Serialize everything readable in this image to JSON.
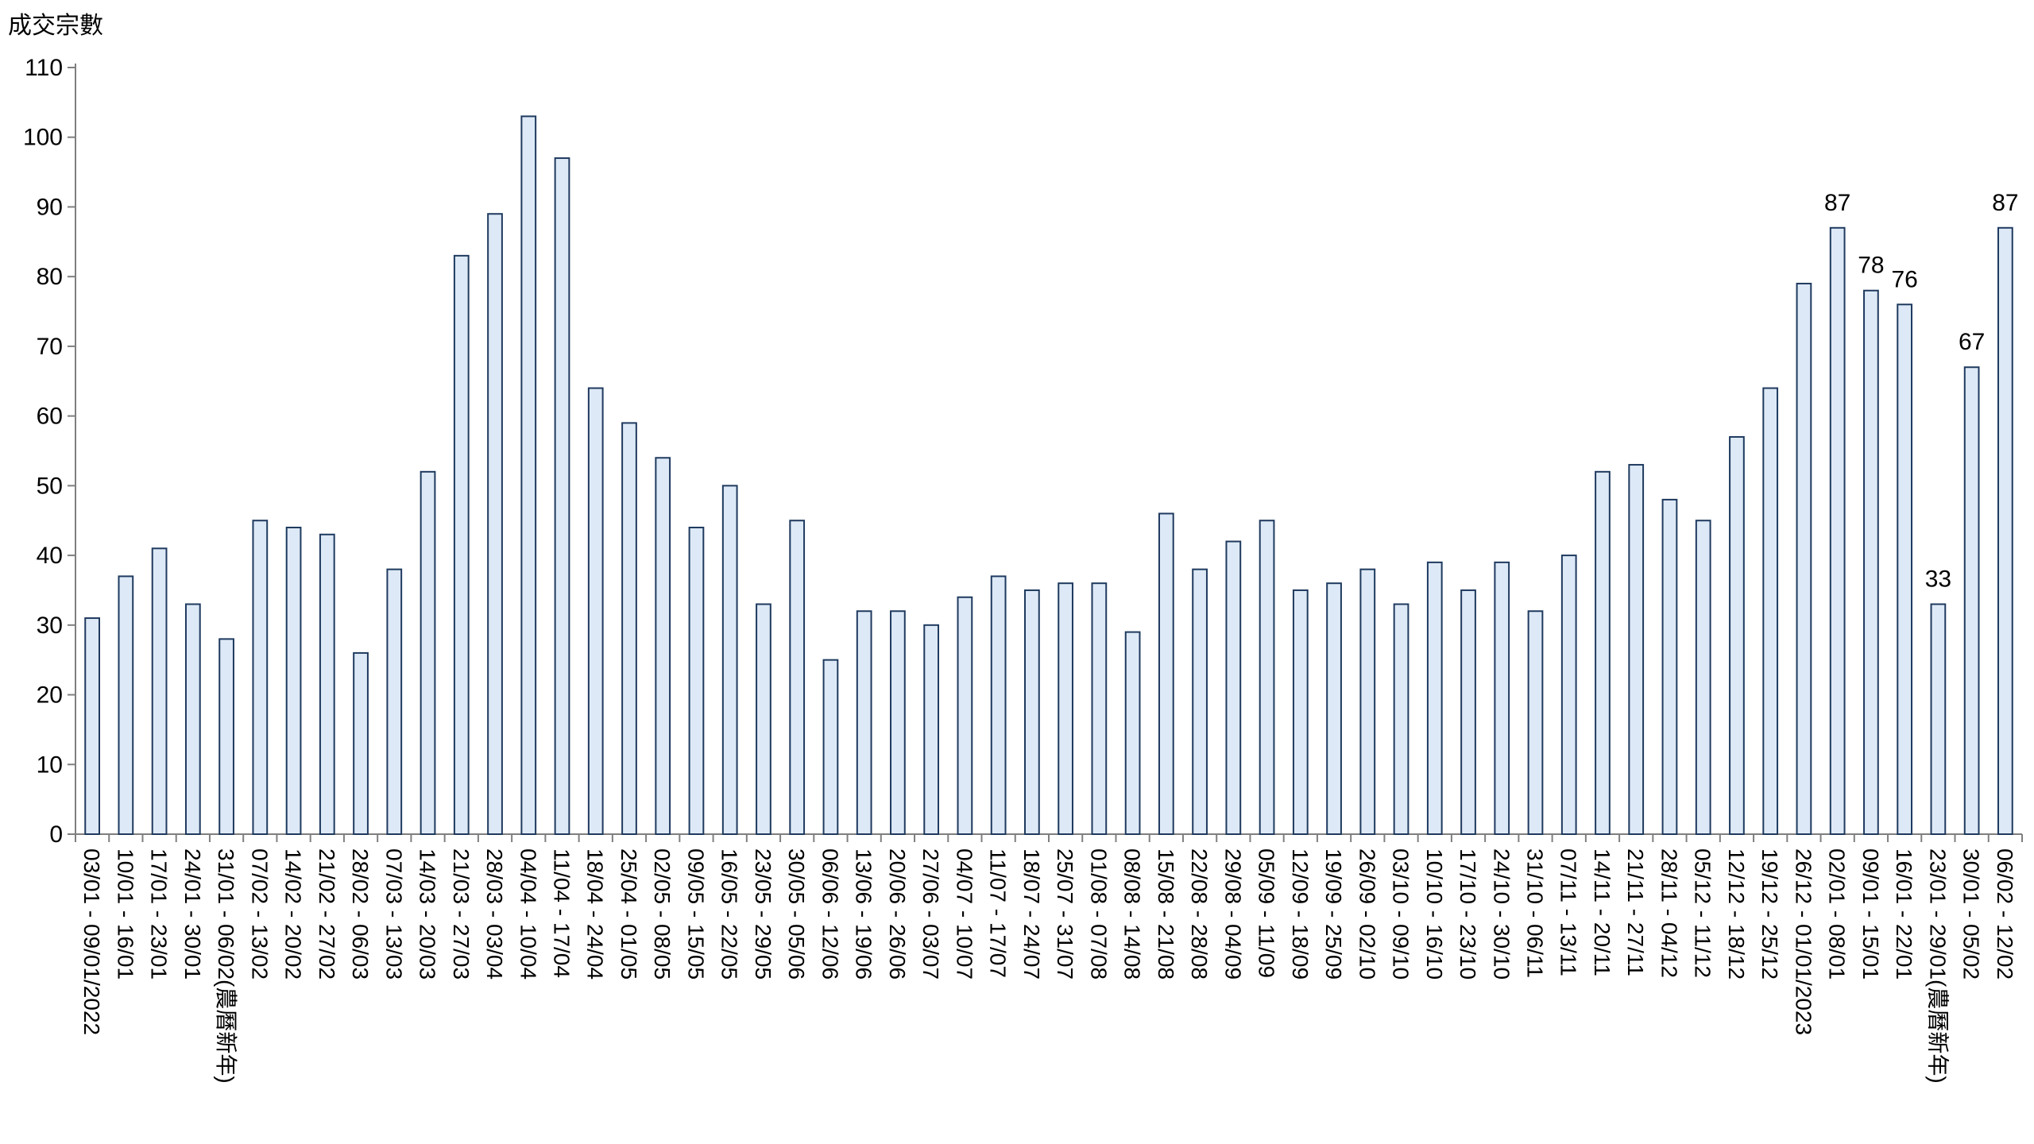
{
  "chart_data": {
    "type": "bar",
    "ylabel": "成交宗數",
    "ylim": [
      0,
      110
    ],
    "yticks": [
      0,
      10,
      20,
      30,
      40,
      50,
      60,
      70,
      80,
      90,
      100,
      110
    ],
    "grid": false,
    "categories": [
      "03/01 - 09/01/2022",
      "10/01 - 16/01",
      "17/01 - 23/01",
      "24/01 - 30/01",
      "31/01 - 06/02(農曆新年)",
      "07/02 - 13/02",
      "14/02 - 20/02",
      "21/02 - 27/02",
      "28/02 - 06/03",
      "07/03 - 13/03",
      "14/03 - 20/03",
      "21/03 - 27/03",
      "28/03 - 03/04",
      "04/04 - 10/04",
      "11/04 - 17/04",
      "18/04 - 24/04",
      "25/04 - 01/05",
      "02/05 - 08/05",
      "09/05 - 15/05",
      "16/05 - 22/05",
      "23/05 - 29/05",
      "30/05 - 05/06",
      "06/06 - 12/06",
      "13/06 - 19/06",
      "20/06 - 26/06",
      "27/06 - 03/07",
      "04/07 - 10/07",
      "11/07 - 17/07",
      "18/07 - 24/07",
      "25/07 - 31/07",
      "01/08 - 07/08",
      "08/08 - 14/08",
      "15/08 - 21/08",
      "22/08 - 28/08",
      "29/08 - 04/09",
      "05/09 - 11/09",
      "12/09 - 18/09",
      "19/09 - 25/09",
      "26/09 - 02/10",
      "03/10 - 09/10",
      "10/10 - 16/10",
      "17/10 - 23/10",
      "24/10 - 30/10",
      "31/10 - 06/11",
      "07/11 - 13/11",
      "14/11 - 20/11",
      "21/11 - 27/11",
      "28/11 - 04/12",
      "05/12 - 11/12",
      "12/12 - 18/12",
      "19/12 - 25/12",
      "26/12 - 01/01/2023",
      "02/01 - 08/01",
      "09/01 - 15/01",
      "16/01 - 22/01",
      "23/01 - 29/01(農曆新年)",
      "30/01 - 05/02",
      "06/02 - 12/02"
    ],
    "values": [
      31,
      37,
      41,
      33,
      28,
      45,
      44,
      43,
      26,
      38,
      52,
      83,
      89,
      103,
      97,
      64,
      59,
      54,
      44,
      50,
      33,
      45,
      25,
      32,
      32,
      30,
      34,
      37,
      35,
      36,
      36,
      29,
      46,
      38,
      42,
      45,
      35,
      36,
      38,
      33,
      39,
      35,
      39,
      32,
      40,
      52,
      53,
      48,
      45,
      57,
      64,
      79,
      87,
      78,
      76,
      33,
      67,
      87
    ],
    "data_labels": [
      {
        "index": 52,
        "text": "87"
      },
      {
        "index": 53,
        "text": "78"
      },
      {
        "index": 54,
        "text": "76"
      },
      {
        "index": 55,
        "text": "33"
      },
      {
        "index": 56,
        "text": "67"
      },
      {
        "index": 57,
        "text": "87"
      }
    ],
    "colors": {
      "bar_fill": "#dde9f6",
      "bar_stroke": "#1f3a5f",
      "axis": "#7f7f7f"
    }
  }
}
